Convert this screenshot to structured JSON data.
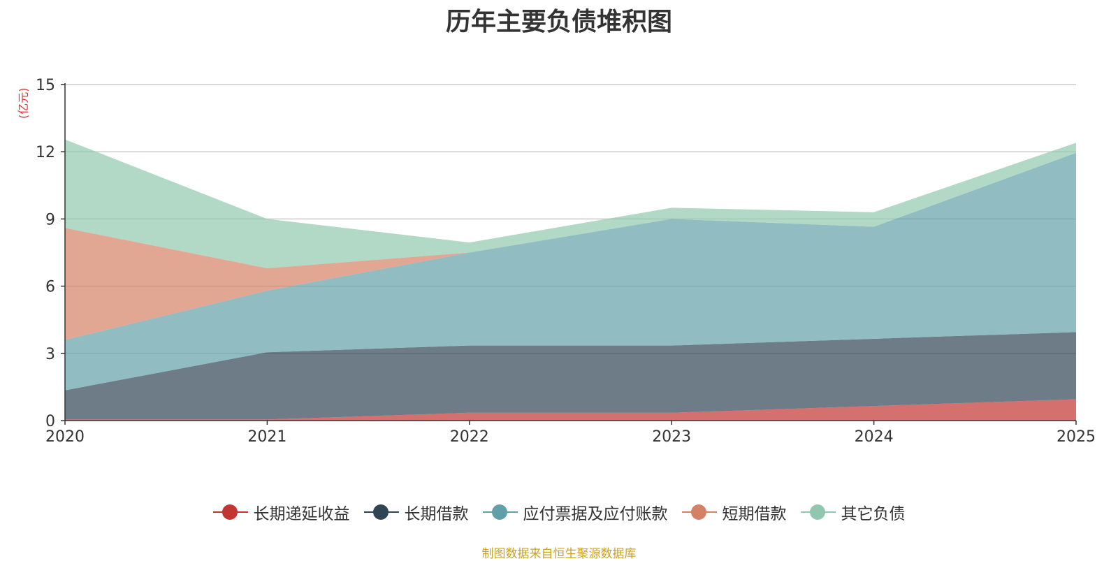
{
  "chart_data": {
    "type": "area",
    "stacked": true,
    "title": "历年主要负债堆积图",
    "ylabel": "(亿元)",
    "xlabel": "",
    "categories": [
      "2020",
      "2021",
      "2022",
      "2023",
      "2024",
      "2025"
    ],
    "ylim": [
      0,
      15
    ],
    "yticks": [
      0,
      3,
      6,
      9,
      12,
      15
    ],
    "grid": true,
    "legend_position": "bottom",
    "series": [
      {
        "name": "长期递延收益",
        "color": "#c23531",
        "values": [
          0.05,
          0.05,
          0.35,
          0.35,
          0.65,
          0.95
        ]
      },
      {
        "name": "长期借款",
        "color": "#2f4554",
        "values": [
          1.3,
          3.0,
          3.0,
          3.0,
          3.0,
          3.0
        ]
      },
      {
        "name": "应付票据及应付账款",
        "color": "#61a0a8",
        "values": [
          2.25,
          2.75,
          4.15,
          5.65,
          5.0,
          8.0
        ]
      },
      {
        "name": "短期借款",
        "color": "#d48265",
        "values": [
          5.0,
          1.0,
          0.0,
          0.0,
          0.0,
          0.0
        ]
      },
      {
        "name": "其它负债",
        "color": "#91c7ae",
        "values": [
          3.95,
          2.2,
          0.45,
          0.5,
          0.65,
          0.45
        ]
      }
    ]
  },
  "footer": {
    "source": "制图数据来自恒生聚源数据库"
  }
}
